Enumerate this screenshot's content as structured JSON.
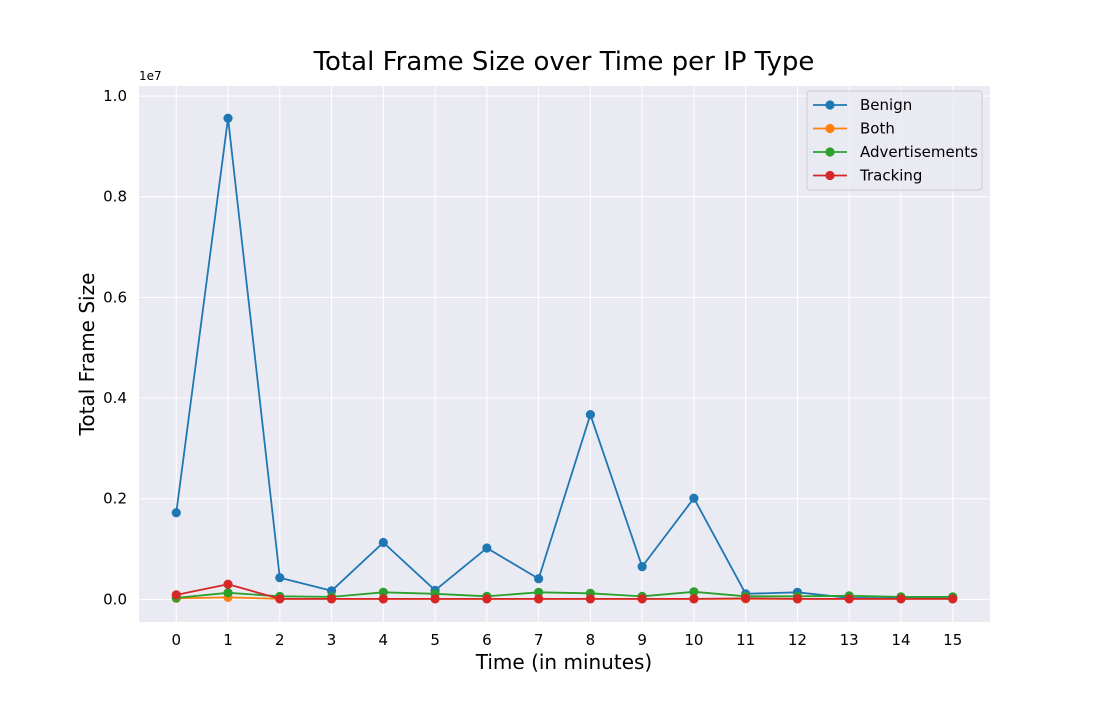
{
  "chart_data": {
    "type": "line",
    "title": "Total Frame Size over Time per IP Type",
    "xlabel": "Time (in minutes)",
    "ylabel": "Total Frame Size",
    "y_offset_label": "1e7",
    "x": [
      0,
      1,
      2,
      3,
      4,
      5,
      6,
      7,
      8,
      9,
      10,
      11,
      12,
      13,
      14,
      15
    ],
    "x_tick_labels": [
      "0",
      "1",
      "2",
      "3",
      "4",
      "5",
      "6",
      "7",
      "8",
      "9",
      "10",
      "11",
      "12",
      "13",
      "14",
      "15"
    ],
    "y_ticks": [
      0,
      2000000,
      4000000,
      6000000,
      8000000,
      10000000
    ],
    "y_tick_labels": [
      "0.0",
      "0.2",
      "0.4",
      "0.6",
      "0.8",
      "1.0"
    ],
    "xlim": [
      -0.72,
      15.72
    ],
    "ylim": [
      -450000,
      10200000
    ],
    "grid": true,
    "legend_position": "top-right",
    "series": [
      {
        "name": "Benign",
        "color": "#1f77b4",
        "values": [
          1720000,
          9560000,
          430000,
          170000,
          1130000,
          180000,
          1020000,
          410000,
          3670000,
          650000,
          2010000,
          110000,
          140000,
          30000,
          20000,
          20000
        ]
      },
      {
        "name": "Both",
        "color": "#ff7f0e",
        "values": [
          20000,
          40000,
          10000,
          10000,
          10000,
          10000,
          10000,
          10000,
          10000,
          10000,
          10000,
          10000,
          10000,
          10000,
          10000,
          10000
        ]
      },
      {
        "name": "Advertisements",
        "color": "#2ca02c",
        "values": [
          30000,
          130000,
          60000,
          50000,
          140000,
          110000,
          60000,
          140000,
          120000,
          60000,
          150000,
          60000,
          60000,
          70000,
          50000,
          50000
        ]
      },
      {
        "name": "Tracking",
        "color": "#d62728",
        "values": [
          90000,
          300000,
          10000,
          10000,
          10000,
          10000,
          10000,
          10000,
          10000,
          10000,
          10000,
          20000,
          10000,
          10000,
          10000,
          10000
        ]
      }
    ]
  }
}
